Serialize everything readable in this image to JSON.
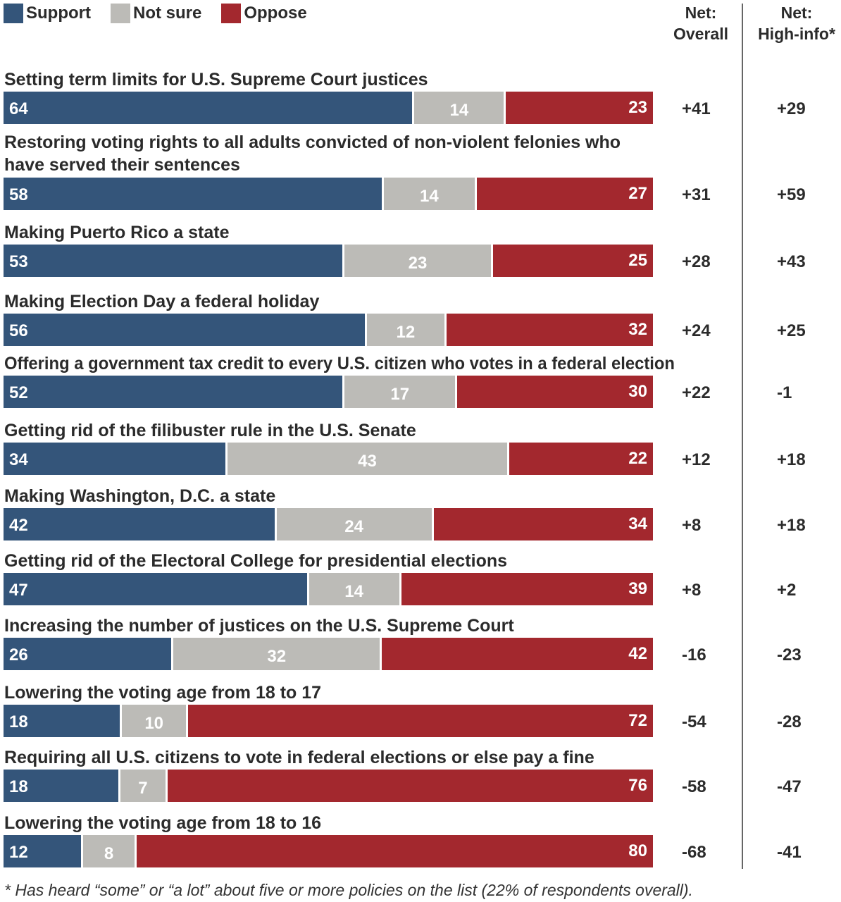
{
  "chart_data": {
    "type": "bar",
    "orientation": "horizontal",
    "stacked": true,
    "legend": {
      "placement": "top-left",
      "entries": [
        "Support",
        "Not sure",
        "Oppose"
      ]
    },
    "colors": {
      "Support": "#34557a",
      "Not sure": "#bcbbb7",
      "Oppose": "#a3282e"
    },
    "column_headers": {
      "overall": "Net:\nOverall",
      "overall_lines": [
        "Net:",
        "Overall"
      ],
      "high_info_lines": [
        "Net:",
        "High-info*"
      ]
    },
    "categories": [
      "Setting term limits for U.S. Supreme Court justices",
      "Restoring voting rights to all adults convicted of non-violent felonies who have served their sentences",
      "Making Puerto Rico a state",
      "Making Election Day a federal holiday",
      "Offering a government tax credit to every U.S. citizen who votes in a federal election",
      "Getting rid of the filibuster rule in the U.S. Senate",
      "Making Washington, D.C. a state",
      "Getting rid of the Electoral College for presidential elections",
      "Increasing the number of justices on the U.S. Supreme Court",
      "Lowering the voting age from 18 to 17",
      "Requiring all U.S. citizens to vote in federal elections or else pay a fine",
      "Lowering the voting age from 18 to 16"
    ],
    "label_lines": {
      "1": [
        "Restoring voting rights to all adults convicted of non-violent felonies who",
        "have served their sentences"
      ]
    },
    "series": [
      {
        "name": "Support",
        "values": [
          64,
          58,
          53,
          56,
          52,
          34,
          42,
          47,
          26,
          18,
          18,
          12
        ]
      },
      {
        "name": "Not sure",
        "values": [
          14,
          14,
          23,
          12,
          17,
          43,
          24,
          14,
          32,
          10,
          7,
          8
        ]
      },
      {
        "name": "Oppose",
        "values": [
          23,
          27,
          25,
          32,
          30,
          22,
          34,
          39,
          42,
          72,
          76,
          80
        ]
      }
    ],
    "net_overall": [
      "+41",
      "+31",
      "+28",
      "+24",
      "+22",
      "+12",
      "+8",
      "+8",
      "-16",
      "-54",
      "-58",
      "-68"
    ],
    "net_high_info": [
      "+29",
      "+59",
      "+43",
      "+25",
      "-1",
      "+18",
      "+18",
      "+2",
      "-23",
      "-28",
      "-47",
      "-41"
    ],
    "footnote": "* Has heard “some” or “a lot” about five or more policies on the list (22% of respondents overall)."
  }
}
